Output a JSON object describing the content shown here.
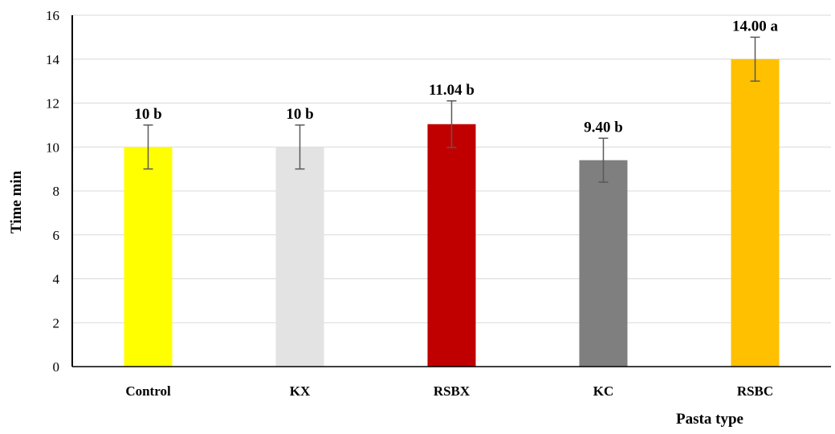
{
  "chart_data": {
    "type": "bar",
    "title": "",
    "xlabel": "Pasta type",
    "ylabel": "Time min",
    "ylim": [
      0,
      16
    ],
    "yticks": [
      0,
      2,
      4,
      6,
      8,
      10,
      12,
      14,
      16
    ],
    "grid": true,
    "categories": [
      "Control",
      "KX",
      "RSBX",
      "KC",
      "RSBC"
    ],
    "values": [
      10,
      10,
      11.04,
      9.4,
      14.0
    ],
    "errors": [
      1,
      1,
      1.06,
      1,
      1
    ],
    "data_labels": [
      "10 b",
      "10 b",
      "11.04 b",
      "9.40 b",
      "14.00 a"
    ],
    "colors": [
      "#FFFF00",
      "#E3E3E3",
      "#C00000",
      "#7F7F7F",
      "#FFC000"
    ]
  }
}
